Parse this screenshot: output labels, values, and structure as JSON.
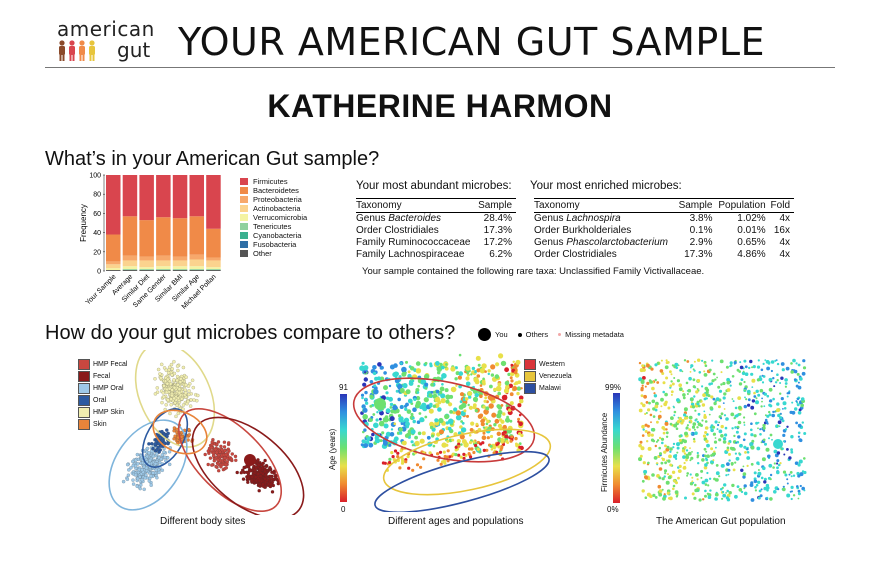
{
  "header": {
    "logo_line1": "american",
    "logo_line2": "gut",
    "title": "YOUR AMERICAN GUT SAMPLE"
  },
  "participant_name": "KATHERINE HARMON",
  "section1": {
    "title": "What’s in your American Gut sample?"
  },
  "bar_chart": {
    "chart_data": {
      "type": "bar",
      "stacked": true,
      "categories": [
        "Your Sample",
        "Average",
        "Similar Diet",
        "Same Gender",
        "Similar BMI",
        "Similar Age",
        "Michael Pollan"
      ],
      "ylabel": "Frequency",
      "ylim": [
        0,
        100
      ],
      "yticks": [
        "0",
        "20",
        "40",
        "60",
        "80",
        "100"
      ],
      "series": [
        {
          "name": "Other",
          "color": "#555555",
          "values": [
            1,
            1,
            1,
            1,
            1,
            1,
            1
          ]
        },
        {
          "name": "Fusobacteria",
          "color": "#2e6fa6",
          "values": [
            0,
            0,
            0,
            0,
            0,
            0,
            0
          ]
        },
        {
          "name": "Cyanobacteria",
          "color": "#3bb08f",
          "values": [
            0,
            0,
            0,
            0,
            0,
            0,
            0
          ]
        },
        {
          "name": "Tenericutes",
          "color": "#8fd19e",
          "values": [
            0,
            1,
            1,
            1,
            1,
            1,
            1
          ]
        },
        {
          "name": "Verrucomicrobia",
          "color": "#f4f3a3",
          "values": [
            2,
            3,
            2,
            3,
            3,
            3,
            2
          ]
        },
        {
          "name": "Actinobacteria",
          "color": "#fbd38e",
          "values": [
            4,
            6,
            7,
            6,
            6,
            7,
            7
          ]
        },
        {
          "name": "Proteobacteria",
          "color": "#f7a86b",
          "values": [
            3,
            5,
            4,
            5,
            4,
            5,
            3
          ]
        },
        {
          "name": "Bacteroidetes",
          "color": "#f08a48",
          "values": [
            28,
            41,
            38,
            40,
            40,
            40,
            30
          ]
        },
        {
          "name": "Firmicutes",
          "color": "#d9454e",
          "values": [
            62,
            43,
            47,
            44,
            45,
            43,
            56
          ]
        }
      ]
    }
  },
  "abundant_table": {
    "title": "Your most abundant microbes:",
    "headers": [
      "Taxonomy",
      "Sample"
    ],
    "rows": [
      {
        "prefix": "Genus ",
        "italic": "Bacteroides",
        "sample": "28.4%"
      },
      {
        "prefix": "Order Clostridiales",
        "italic": "",
        "sample": "17.3%"
      },
      {
        "prefix": "Family Ruminococcaceae",
        "italic": "",
        "sample": "17.2%"
      },
      {
        "prefix": "Family Lachnospiraceae",
        "italic": "",
        "sample": "6.2%"
      }
    ]
  },
  "enriched_table": {
    "title": "Your most enriched microbes:",
    "headers": [
      "Taxonomy",
      "Sample",
      "Population",
      "Fold"
    ],
    "rows": [
      {
        "prefix": "Genus ",
        "italic": "Lachnospira",
        "sample": "3.8%",
        "population": "1.02%",
        "fold": "4x"
      },
      {
        "prefix": "Order Burkholderiales",
        "italic": "",
        "sample": "0.1%",
        "population": "0.01%",
        "fold": "16x"
      },
      {
        "prefix": "Genus ",
        "italic": "Phascolarctobacterium",
        "sample": "2.9%",
        "population": "0.65%",
        "fold": "4x"
      },
      {
        "prefix": "Order Clostridiales",
        "italic": "",
        "sample": "17.3%",
        "population": "4.86%",
        "fold": "4x"
      }
    ]
  },
  "rare_taxa": "Your sample contained the following rare taxa: Unclassified Family Victivallaceae.",
  "section2": {
    "title": "How do your gut microbes compare to others?",
    "legend": {
      "you": "You",
      "others": "Others",
      "missing": "Missing metadata"
    }
  },
  "plot1": {
    "caption": "Different body sites",
    "legend": [
      {
        "label": "HMP Fecal",
        "color": "#c8473f"
      },
      {
        "label": "Fecal",
        "color": "#8a1a1a"
      },
      {
        "label": "HMP Oral",
        "color": "#9ec9e8"
      },
      {
        "label": "Oral",
        "color": "#2c5aa0"
      },
      {
        "label": "HMP Skin",
        "color": "#f1eeb0"
      },
      {
        "label": "Skin",
        "color": "#e8843a"
      }
    ]
  },
  "plot2": {
    "caption": "Different ages and populations",
    "axis_label": "Age (years)",
    "scale_max": "91",
    "scale_min": "0",
    "legend": [
      {
        "label": "Western",
        "color": "#d9353a"
      },
      {
        "label": "Venezuela",
        "color": "#e7c53c"
      },
      {
        "label": "Malawi",
        "color": "#2d4fa0"
      }
    ]
  },
  "plot3": {
    "caption": "The American Gut population",
    "axis_label": "Firmicutes Abundance",
    "scale_max": "99%",
    "scale_min": "0%"
  },
  "colors": {
    "rule": "#777777"
  }
}
